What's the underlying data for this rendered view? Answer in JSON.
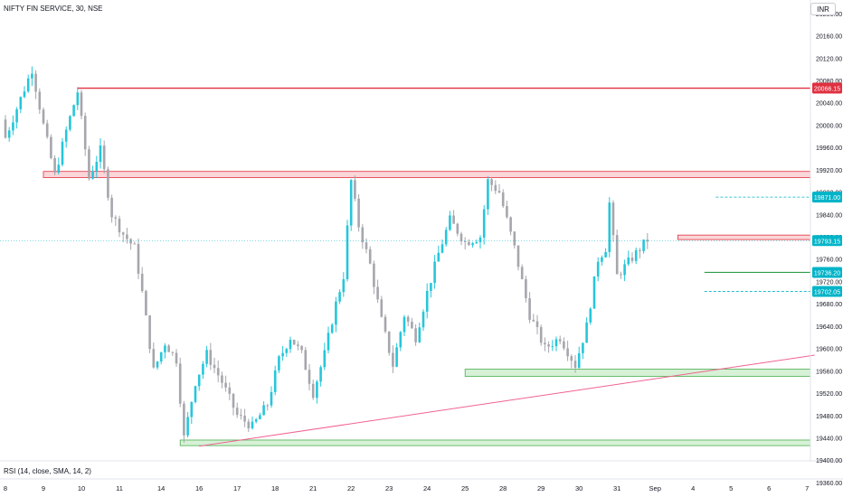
{
  "header": {
    "title": "NIFTY FIN SERVICE, 30, NSE"
  },
  "currency_button": "INR",
  "indicator_label": "RSI (14, close, SMA, 14, 2)",
  "colors": {
    "up": "#26c6da",
    "down": "#a6a6ad",
    "resistance": "#e03040",
    "zone_red_fill": "#f8c8cc",
    "zone_green_fill": "#c8ecc8",
    "zone_green_stroke": "#4caf50",
    "trendline": "#f06292",
    "teal_label": "#00b4c8",
    "green_level": "#2e9e4a"
  },
  "chart_data": {
    "type": "candlestick",
    "title": "NIFTY FIN SERVICE, 30, NSE",
    "x_tick_labels": [
      "8",
      "9",
      "10",
      "11",
      "14",
      "16",
      "17",
      "18",
      "21",
      "22",
      "23",
      "24",
      "25",
      "28",
      "29",
      "30",
      "31",
      "Sep",
      "4",
      "5",
      "6",
      "7"
    ],
    "x_tick_slots": [
      0,
      10,
      20,
      30,
      41,
      51,
      61,
      71,
      81,
      91,
      101,
      111,
      121,
      131,
      141,
      151,
      161,
      171,
      181,
      191,
      201,
      211
    ],
    "y_ticks": [
      20200,
      20160,
      20120,
      20080,
      20040,
      20000,
      19960,
      19920,
      19880,
      19840,
      19800,
      19760,
      19720,
      19680,
      19640,
      19600,
      19560,
      19520,
      19480,
      19440,
      19400,
      19360
    ],
    "ylim": [
      19334,
      20224
    ],
    "price_labels": [
      {
        "text": "20066.15",
        "value": 20066.15,
        "color": "#e03040"
      },
      {
        "text": "19871.00",
        "value": 19871,
        "color": "#00b4c8"
      },
      {
        "text": "19793.15",
        "value": 19793.15,
        "color": "#00b4c8"
      },
      {
        "text": "19736.20",
        "value": 19736.2,
        "color": "#00b4c8"
      },
      {
        "text": "19702.05",
        "value": 19702.05,
        "color": "#00b4c8"
      }
    ],
    "horizontal_levels": [
      {
        "name": "resistance",
        "value": 20066.15,
        "from_slot": 19
      },
      {
        "name": "long-target",
        "value": 19871,
        "from_slot": 187
      },
      {
        "name": "long-entry",
        "value": 19736.2,
        "from_slot": 184
      },
      {
        "name": "long-stop",
        "value": 19702.05,
        "from_slot": 184
      }
    ],
    "zones": [
      {
        "name": "supply-zone",
        "top": 19917,
        "bottom": 19906,
        "from_slot": 10
      },
      {
        "name": "small-supply-zone",
        "top": 19803,
        "bottom": 19795,
        "from_slot": 177
      },
      {
        "name": "demand-zone-upper",
        "top": 19563,
        "bottom": 19550,
        "from_slot": 121
      },
      {
        "name": "demand-zone-lower",
        "top": 19436,
        "bottom": 19426,
        "from_slot": 46
      }
    ],
    "trendline": {
      "from": [
        51,
        19425
      ],
      "to": [
        213,
        19588
      ]
    },
    "segments": [
      {
        "n": 8,
        "start": 19960,
        "end": 20100
      },
      {
        "n": 3,
        "start": 20100,
        "end": 20000
      },
      {
        "n": 3,
        "start": 20000,
        "end": 19910
      },
      {
        "n": 3,
        "start": 19910,
        "end": 19990
      },
      {
        "n": 3,
        "start": 19990,
        "end": 20060
      },
      {
        "n": 3,
        "start": 20060,
        "end": 19905
      },
      {
        "n": 3,
        "start": 19905,
        "end": 19955
      },
      {
        "n": 3,
        "start": 19955,
        "end": 19840
      },
      {
        "n": 3,
        "start": 19840,
        "end": 19805
      },
      {
        "n": 3,
        "start": 19805,
        "end": 19780
      },
      {
        "n": 2,
        "start": 19780,
        "end": 19700
      },
      {
        "n": 3,
        "start": 19700,
        "end": 19560
      },
      {
        "n": 3,
        "start": 19560,
        "end": 19610
      },
      {
        "n": 3,
        "start": 19610,
        "end": 19580
      },
      {
        "n": 2,
        "start": 19580,
        "end": 19440
      },
      {
        "n": 3,
        "start": 19440,
        "end": 19540
      },
      {
        "n": 3,
        "start": 19540,
        "end": 19590
      },
      {
        "n": 4,
        "start": 19590,
        "end": 19540
      },
      {
        "n": 4,
        "start": 19540,
        "end": 19480
      },
      {
        "n": 4,
        "start": 19480,
        "end": 19460
      },
      {
        "n": 4,
        "start": 19460,
        "end": 19500
      },
      {
        "n": 3,
        "start": 19500,
        "end": 19580
      },
      {
        "n": 3,
        "start": 19580,
        "end": 19620
      },
      {
        "n": 3,
        "start": 19620,
        "end": 19590
      },
      {
        "n": 3,
        "start": 19590,
        "end": 19520
      },
      {
        "n": 3,
        "start": 19520,
        "end": 19590
      },
      {
        "n": 3,
        "start": 19590,
        "end": 19680
      },
      {
        "n": 2,
        "start": 19680,
        "end": 19730
      },
      {
        "n": 2,
        "start": 19730,
        "end": 19900
      },
      {
        "n": 2,
        "start": 19900,
        "end": 19820
      },
      {
        "n": 3,
        "start": 19820,
        "end": 19750
      },
      {
        "n": 3,
        "start": 19750,
        "end": 19650
      },
      {
        "n": 3,
        "start": 19650,
        "end": 19570
      },
      {
        "n": 3,
        "start": 19570,
        "end": 19660
      },
      {
        "n": 3,
        "start": 19660,
        "end": 19620
      },
      {
        "n": 3,
        "start": 19620,
        "end": 19700
      },
      {
        "n": 3,
        "start": 19700,
        "end": 19770
      },
      {
        "n": 3,
        "start": 19770,
        "end": 19830
      },
      {
        "n": 4,
        "start": 19830,
        "end": 19790
      },
      {
        "n": 4,
        "start": 19790,
        "end": 19800
      },
      {
        "n": 2,
        "start": 19800,
        "end": 19900
      },
      {
        "n": 3,
        "start": 19900,
        "end": 19880
      },
      {
        "n": 4,
        "start": 19880,
        "end": 19780
      },
      {
        "n": 4,
        "start": 19780,
        "end": 19660
      },
      {
        "n": 4,
        "start": 19660,
        "end": 19600
      },
      {
        "n": 4,
        "start": 19600,
        "end": 19620
      },
      {
        "n": 4,
        "start": 19620,
        "end": 19570
      },
      {
        "n": 3,
        "start": 19570,
        "end": 19640
      },
      {
        "n": 3,
        "start": 19640,
        "end": 19760
      },
      {
        "n": 2,
        "start": 19760,
        "end": 19780
      },
      {
        "n": 1,
        "start": 19780,
        "end": 19860
      },
      {
        "n": 2,
        "start": 19860,
        "end": 19730
      },
      {
        "n": 8,
        "start": 19730,
        "end": 19795
      }
    ]
  }
}
